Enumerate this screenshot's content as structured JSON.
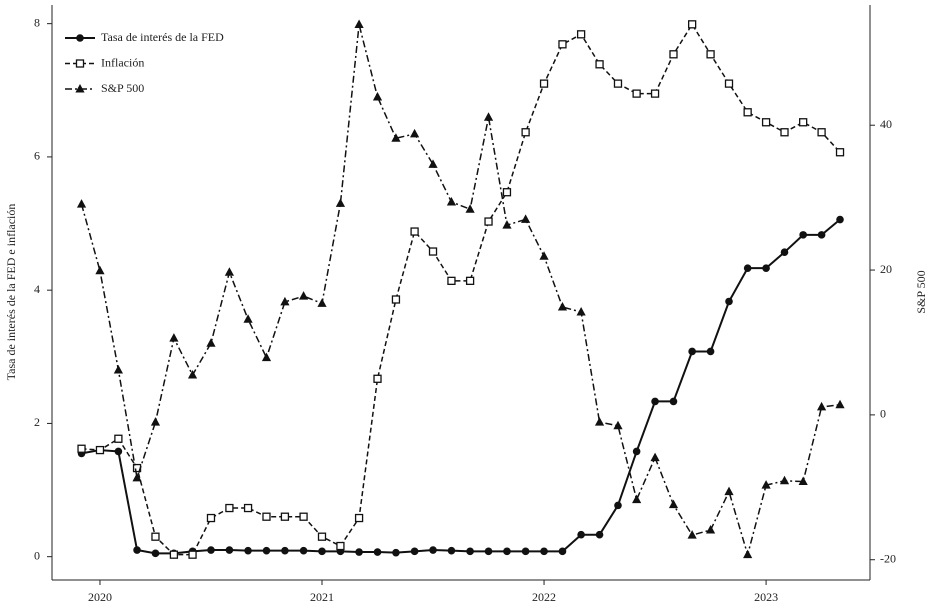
{
  "chart_data": {
    "type": "line",
    "y_label": "Tasa de interés de la FED e inflación",
    "y2_label": "S&P 500",
    "x": [
      2019.917,
      2020.0,
      2020.083,
      2020.167,
      2020.25,
      2020.333,
      2020.417,
      2020.5,
      2020.583,
      2020.667,
      2020.75,
      2020.833,
      2020.917,
      2021.0,
      2021.083,
      2021.167,
      2021.25,
      2021.333,
      2021.417,
      2021.5,
      2021.583,
      2021.667,
      2021.75,
      2021.833,
      2021.917,
      2022.0,
      2022.083,
      2022.167,
      2022.25,
      2022.333,
      2022.417,
      2022.5,
      2022.583,
      2022.667,
      2022.75,
      2022.833,
      2022.917,
      2023.0,
      2023.083,
      2023.167,
      2023.25,
      2023.333
    ],
    "xlim": [
      2019.784,
      2023.468
    ],
    "xticks": [
      2020,
      2021,
      2022,
      2023
    ],
    "ylim": [
      -0.35,
      8.28
    ],
    "yticks": [
      0,
      2,
      4,
      6,
      8
    ],
    "y2lim": [
      -22.8,
      56.6
    ],
    "y2ticks": [
      -20,
      0,
      20,
      40
    ],
    "legend": "upper left",
    "series": [
      {
        "name": "Tasa de interés de la FED",
        "color": "#111111",
        "dash": "solid",
        "marker": "circle",
        "values": [
          1.55,
          1.6,
          1.58,
          0.1,
          0.05,
          0.05,
          0.08,
          0.1,
          0.1,
          0.09,
          0.09,
          0.09,
          0.09,
          0.08,
          0.08,
          0.07,
          0.07,
          0.06,
          0.08,
          0.1,
          0.09,
          0.08,
          0.08,
          0.08,
          0.08,
          0.08,
          0.08,
          0.33,
          0.33,
          0.77,
          1.58,
          2.33,
          2.33,
          3.08,
          3.08,
          3.83,
          4.33,
          4.33,
          4.57,
          4.83,
          4.83,
          5.06
        ]
      },
      {
        "name": "Inflación",
        "color": "#111111",
        "dash": "dashed",
        "marker": "square",
        "values": [
          1.62,
          1.6,
          1.77,
          1.33,
          0.3,
          0.03,
          0.03,
          0.58,
          0.73,
          0.73,
          0.6,
          0.6,
          0.6,
          0.3,
          0.16,
          0.58,
          2.67,
          3.86,
          4.88,
          4.58,
          4.14,
          4.14,
          5.03,
          5.47,
          6.37,
          7.1,
          7.69,
          7.84,
          7.39,
          7.1,
          6.95,
          6.95,
          7.54,
          7.99,
          7.54,
          7.1,
          6.67,
          6.52,
          6.37,
          6.52,
          6.37,
          6.07
        ]
      },
      {
        "name": "S&P 500",
        "color": "#111111",
        "dash": "dashdot",
        "marker": "triangle",
        "axis": "y2",
        "values": [
          29.1,
          19.9,
          6.2,
          -8.7,
          -1.0,
          10.6,
          5.5,
          9.9,
          19.7,
          13.2,
          7.9,
          15.6,
          16.4,
          15.4,
          29.2,
          53.9,
          43.9,
          38.2,
          38.8,
          34.6,
          29.4,
          28.4,
          41.1,
          26.2,
          27.0,
          21.9,
          14.9,
          14.2,
          -1.0,
          -1.5,
          -11.7,
          -5.9,
          -12.4,
          -16.6,
          -15.9,
          -10.6,
          -19.3,
          -9.7,
          -9.1,
          -9.2,
          1.1,
          1.4
        ]
      }
    ]
  }
}
